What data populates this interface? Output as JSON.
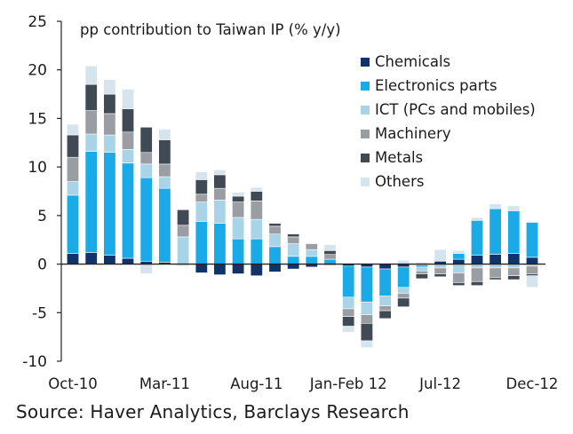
{
  "chart_data": {
    "type": "bar",
    "stacked": true,
    "title": "pp contribution to Taiwan IP (% y/y)",
    "xlabel": "",
    "ylabel": "",
    "ylim": [
      -10,
      25
    ],
    "yticks": [
      -10,
      -5,
      0,
      5,
      10,
      15,
      20,
      25
    ],
    "grid": false,
    "legend_position": "top-right",
    "categories": [
      "Oct-10",
      "Nov-10",
      "Dec-10",
      "Jan-11",
      "Feb-11",
      "Mar-11",
      "Apr-11",
      "May-11",
      "Jun-11",
      "Jul-11",
      "Aug-11",
      "Sep-11",
      "Oct-11",
      "Nov-11",
      "Dec-11",
      "Jan-Feb 12",
      "Mar-12",
      "Apr-12",
      "May-12",
      "Jun-12",
      "Jul-12",
      "Aug-12",
      "Sep-12",
      "Oct-12",
      "Nov-12",
      "Dec-12"
    ],
    "xtick_labels": [
      {
        "index": 0,
        "label": "Oct-10"
      },
      {
        "index": 5,
        "label": "Mar-11"
      },
      {
        "index": 10,
        "label": "Aug-11"
      },
      {
        "index": 15,
        "label": "Jan-Feb 12"
      },
      {
        "index": 20,
        "label": "Jul-12"
      },
      {
        "index": 25,
        "label": "Dec-12"
      }
    ],
    "series": [
      {
        "name": "Chemicals",
        "color": "#10336b",
        "values": [
          1.1,
          1.2,
          0.9,
          0.6,
          0.3,
          0.2,
          0.0,
          -0.9,
          -1.1,
          -1.0,
          -1.2,
          -0.8,
          -0.5,
          -0.3,
          -0.1,
          -0.2,
          -0.3,
          -0.5,
          -0.3,
          -0.1,
          0.3,
          0.5,
          0.9,
          1.0,
          1.1,
          0.7
        ]
      },
      {
        "name": "Electronics parts",
        "color": "#1aaae8",
        "values": [
          6.0,
          10.4,
          10.6,
          9.8,
          8.6,
          7.6,
          0.0,
          4.4,
          4.2,
          2.6,
          2.6,
          1.8,
          0.8,
          0.8,
          0.5,
          -3.2,
          -3.6,
          -2.8,
          -2.1,
          -0.2,
          0.0,
          0.6,
          3.6,
          4.7,
          4.4,
          3.6
        ]
      },
      {
        "name": "ICT (PCs and mobiles)",
        "color": "#a9d4e8",
        "values": [
          1.4,
          1.8,
          1.8,
          1.4,
          1.4,
          1.2,
          2.8,
          2.0,
          2.4,
          2.2,
          2.0,
          1.3,
          1.3,
          0.7,
          0.0,
          -1.2,
          -1.3,
          -1.0,
          -0.6,
          -0.4,
          -0.4,
          -0.9,
          -0.4,
          -0.4,
          -0.4,
          -0.2
        ]
      },
      {
        "name": "Machinery",
        "color": "#9a9ea3",
        "values": [
          2.5,
          2.4,
          2.2,
          1.8,
          1.2,
          1.3,
          1.2,
          0.8,
          1.2,
          1.6,
          1.9,
          0.8,
          0.7,
          0.6,
          0.5,
          -0.8,
          -0.9,
          -0.5,
          -0.5,
          -0.3,
          -0.6,
          -1.0,
          -1.4,
          -1.0,
          -0.8,
          -0.8
        ]
      },
      {
        "name": "Metals",
        "color": "#3f4a55",
        "values": [
          2.3,
          2.7,
          2.0,
          2.4,
          2.6,
          2.5,
          1.6,
          1.5,
          1.4,
          0.6,
          1.0,
          0.3,
          0.3,
          0.0,
          0.4,
          -1.0,
          -1.8,
          -0.8,
          -0.9,
          -0.5,
          -0.3,
          -0.3,
          -0.4,
          -0.2,
          -0.4,
          -0.2
        ]
      },
      {
        "name": "Others",
        "color": "#d5e4ed",
        "values": [
          1.1,
          1.9,
          1.5,
          2.0,
          -1.0,
          1.1,
          -0.2,
          0.8,
          0.5,
          0.4,
          0.4,
          0.1,
          0.1,
          0.1,
          0.6,
          -0.6,
          -0.7,
          0.0,
          0.4,
          0.2,
          1.2,
          0.3,
          0.3,
          0.5,
          0.5,
          -1.2
        ]
      }
    ]
  },
  "source": "Source: Haver Analytics, Barclays Research"
}
